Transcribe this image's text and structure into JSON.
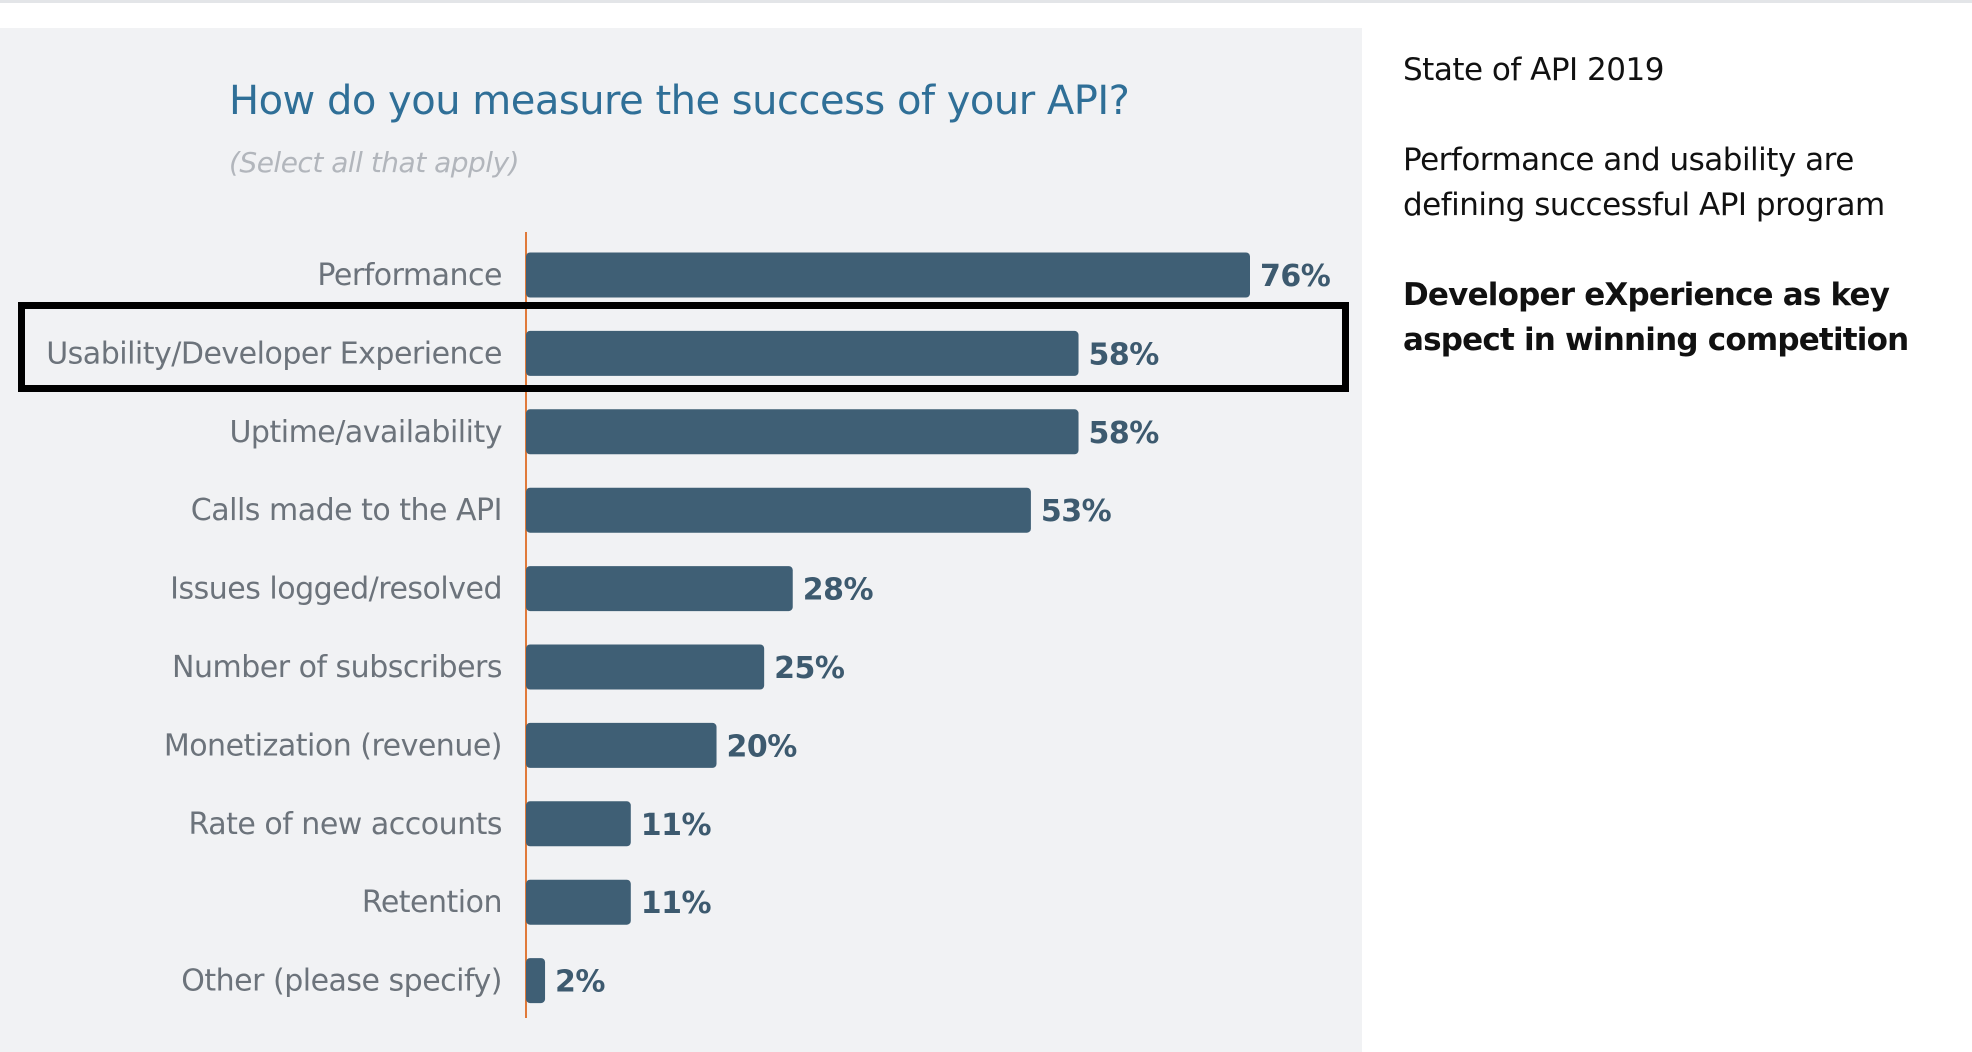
{
  "chart_data": {
    "type": "bar",
    "orientation": "horizontal",
    "title": "How do you measure the success of your API?",
    "subtitle": "(Select all that apply)",
    "categories": [
      "Performance",
      "Usability/Developer Experience",
      "Uptime/availability",
      "Calls made to the API",
      "Issues logged/resolved",
      "Number of subscribers",
      "Monetization (revenue)",
      "Rate of new accounts",
      "Retention",
      "Other (please specify)"
    ],
    "values": [
      76,
      58,
      58,
      53,
      28,
      25,
      20,
      11,
      11,
      2
    ],
    "value_labels": [
      "76%",
      "58%",
      "58%",
      "53%",
      "28%",
      "25%",
      "20%",
      "11%",
      "11%",
      "2%"
    ],
    "unit": "%",
    "xlim": [
      0,
      76
    ],
    "grid": false,
    "highlighted_category": "Usability/Developer Experience",
    "colors": {
      "bar": "#3f5f75",
      "axis_line": "#e07a3a",
      "title": "#2f6f97",
      "highlight_border": "#000000",
      "panel_background": "#f1f2f4"
    }
  },
  "notes": {
    "heading": "State of API 2019",
    "summary": "Performance and usability are defining successful API program",
    "emphasis": "Developer eXperience as key aspect in winning competition"
  }
}
